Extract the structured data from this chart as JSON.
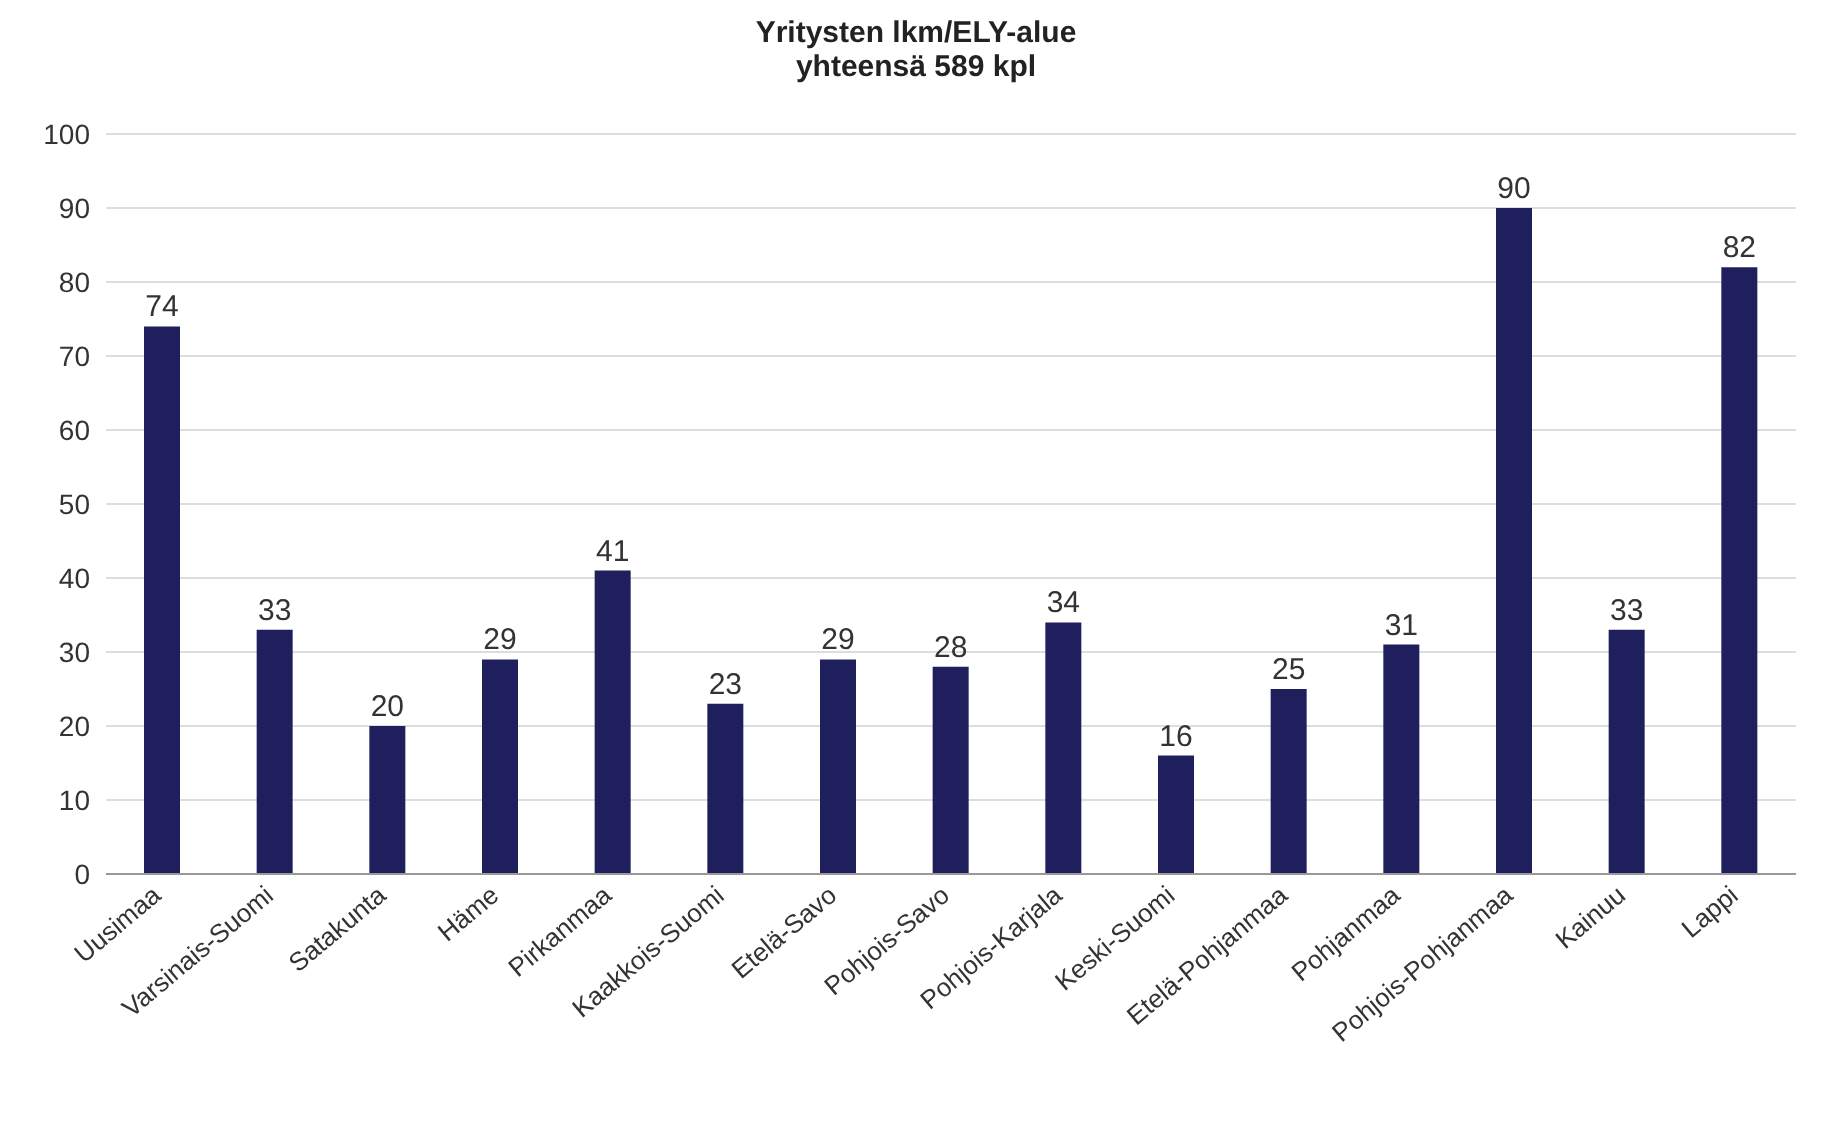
{
  "chart_data": {
    "type": "bar",
    "title": "Yritysten lkm/ELY-alue",
    "subtitle": "yhteensä 589 kpl",
    "categories": [
      "Uusimaa",
      "Varsinais-Suomi",
      "Satakunta",
      "Häme",
      "Pirkanmaa",
      "Kaakkois-Suomi",
      "Etelä-Savo",
      "Pohjois-Savo",
      "Pohjois-Karjala",
      "Keski-Suomi",
      "Etelä-Pohjanmaa",
      "Pohjanmaa",
      "Pohjois-Pohjanmaa",
      "Kainuu",
      "Lappi"
    ],
    "values": [
      74,
      33,
      20,
      29,
      41,
      23,
      29,
      28,
      34,
      16,
      25,
      31,
      90,
      33,
      82
    ],
    "color": "#1f1f5e",
    "ylim": [
      0,
      100
    ],
    "yticks": [
      0,
      10,
      20,
      30,
      40,
      50,
      60,
      70,
      80,
      90,
      100
    ],
    "grid": "y",
    "data_labels": true
  }
}
